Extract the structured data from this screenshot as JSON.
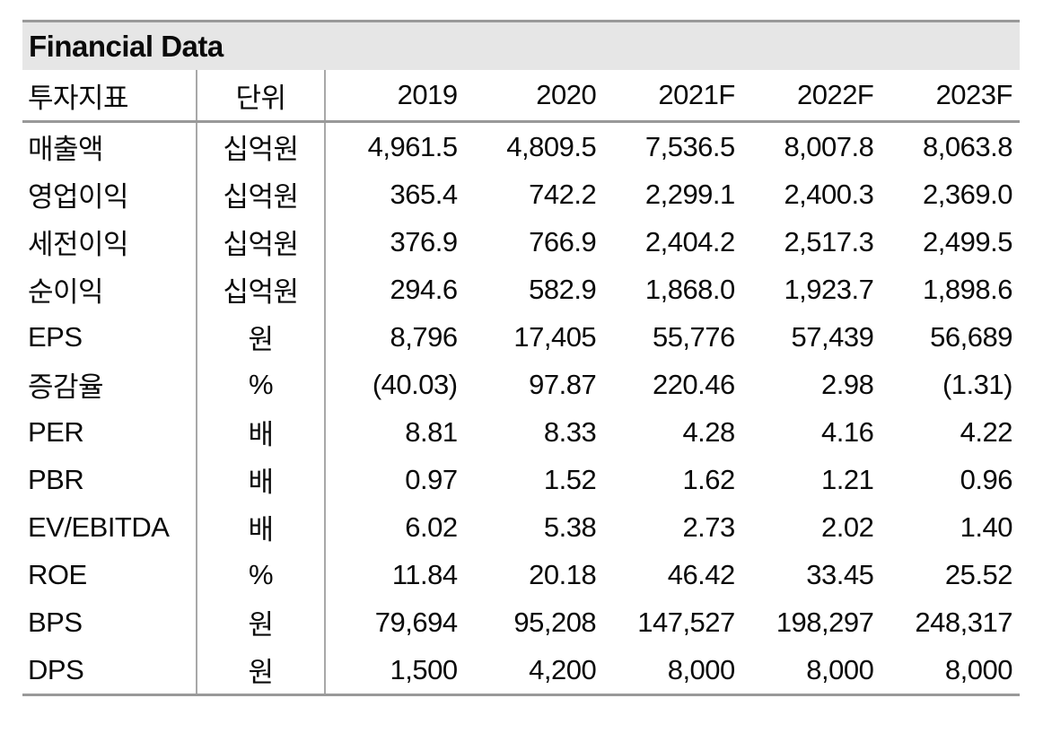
{
  "title": "Financial Data",
  "colors": {
    "title_bar_bg": "#e6e6e6",
    "rule_gray": "#999999",
    "divider_gray": "#a8a8a8",
    "text": "#0a0a0a"
  },
  "table": {
    "columns": [
      "투자지표",
      "단위",
      "2019",
      "2020",
      "2021F",
      "2022F",
      "2023F"
    ],
    "rows": [
      {
        "label": "매출액",
        "unit": "십억원",
        "values": [
          "4,961.5",
          "4,809.5",
          "7,536.5",
          "8,007.8",
          "8,063.8"
        ]
      },
      {
        "label": "영업이익",
        "unit": "십억원",
        "values": [
          "365.4",
          "742.2",
          "2,299.1",
          "2,400.3",
          "2,369.0"
        ]
      },
      {
        "label": "세전이익",
        "unit": "십억원",
        "values": [
          "376.9",
          "766.9",
          "2,404.2",
          "2,517.3",
          "2,499.5"
        ]
      },
      {
        "label": "순이익",
        "unit": "십억원",
        "values": [
          "294.6",
          "582.9",
          "1,868.0",
          "1,923.7",
          "1,898.6"
        ]
      },
      {
        "label": "EPS",
        "unit": "원",
        "values": [
          "8,796",
          "17,405",
          "55,776",
          "57,439",
          "56,689"
        ]
      },
      {
        "label": "증감율",
        "unit": "%",
        "values": [
          "(40.03)",
          "97.87",
          "220.46",
          "2.98",
          "(1.31)"
        ]
      },
      {
        "label": "PER",
        "unit": "배",
        "values": [
          "8.81",
          "8.33",
          "4.28",
          "4.16",
          "4.22"
        ]
      },
      {
        "label": "PBR",
        "unit": "배",
        "values": [
          "0.97",
          "1.52",
          "1.62",
          "1.21",
          "0.96"
        ]
      },
      {
        "label": "EV/EBITDA",
        "unit": "배",
        "values": [
          "6.02",
          "5.38",
          "2.73",
          "2.02",
          "1.40"
        ]
      },
      {
        "label": "ROE",
        "unit": "%",
        "values": [
          "11.84",
          "20.18",
          "46.42",
          "33.45",
          "25.52"
        ]
      },
      {
        "label": "BPS",
        "unit": "원",
        "values": [
          "79,694",
          "95,208",
          "147,527",
          "198,297",
          "248,317"
        ]
      },
      {
        "label": "DPS",
        "unit": "원",
        "values": [
          "1,500",
          "4,200",
          "8,000",
          "8,000",
          "8,000"
        ]
      }
    ]
  }
}
